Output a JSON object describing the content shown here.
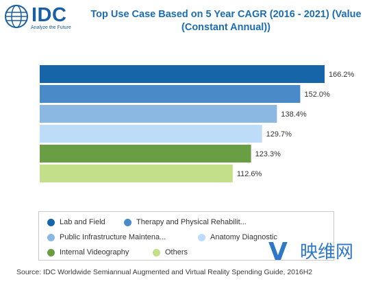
{
  "logo": {
    "text": "IDC",
    "tagline": "Analyze the Future"
  },
  "chart_data": {
    "type": "bar",
    "orientation": "horizontal",
    "title": "Top Use Case Based on 5 Year CAGR (2016 - 2021) (Value (Constant Annual))",
    "categories": [
      "Lab and Field",
      "Therapy and Physical Rehabilit...",
      "Public Infrastructure Maintena...",
      "Anatomy Diagnostic",
      "Internal Videography",
      "Others"
    ],
    "values": [
      166.2,
      152.0,
      138.4,
      129.7,
      123.3,
      112.6
    ],
    "value_labels": [
      "166.2%",
      "152.0%",
      "138.4%",
      "129.7%",
      "123.3%",
      "112.6%"
    ],
    "colors": [
      "#1565a8",
      "#4a8ac9",
      "#8bb8e3",
      "#bddcf8",
      "#6a9e45",
      "#c3df8a"
    ],
    "grid": false,
    "legend_position": "bottom"
  },
  "source": "Source: IDC Worldwide Semiannual Augmented and Virtual Reality Spending Guide, 2016H2",
  "watermark": {
    "letter": "V",
    "text": "映维网"
  }
}
